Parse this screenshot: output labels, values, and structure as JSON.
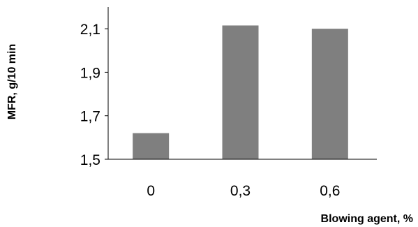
{
  "chart_data": {
    "type": "bar",
    "categories": [
      "0",
      "0,3",
      "0,6"
    ],
    "values": [
      1.62,
      2.115,
      2.1
    ],
    "xlabel": "Blowing agent, %",
    "ylabel": "MFR, g/10 min",
    "ylim": [
      1.5,
      2.2
    ],
    "yticks": [
      1.5,
      1.7,
      1.9,
      2.1
    ],
    "ytick_labels": [
      "1,5",
      "1,7",
      "1,9",
      "2,1"
    ],
    "bar_color": "#7f7f7f",
    "grid": false,
    "legend": "none"
  }
}
